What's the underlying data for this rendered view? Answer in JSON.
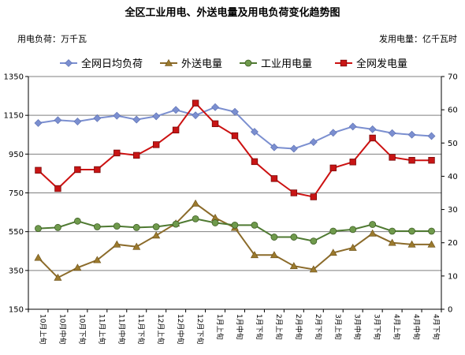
{
  "chart_data": {
    "type": "line",
    "title": "全区工业用电、外送电量及用电负荷变化趋势图",
    "left_unit": "用电负荷：万千瓦",
    "right_unit": "发用电量：亿千瓦时",
    "categories": [
      "10月上旬",
      "10月中旬",
      "10月下旬",
      "11月上旬",
      "11月中旬",
      "11月下旬",
      "12月上旬",
      "12月中旬",
      "12月下旬",
      "1月上旬",
      "1月中旬",
      "1月下旬",
      "2月上旬",
      "2月中旬",
      "2月下旬",
      "3月上旬",
      "3月中旬",
      "3月下旬",
      "4月上旬",
      "4月中旬",
      "4月下旬"
    ],
    "y_left": {
      "min": 150,
      "max": 1350,
      "ticks": [
        150,
        350,
        550,
        750,
        950,
        1150,
        1350
      ]
    },
    "y_right": {
      "min": 0,
      "max": 70,
      "ticks": [
        0,
        10,
        20,
        30,
        40,
        50,
        60,
        70
      ]
    },
    "grid": "horizontal",
    "legend_position": "top",
    "series": [
      {
        "name": "全网日均负荷",
        "axis": "left",
        "color": "#7b8fd0",
        "marker": "diamond",
        "values": [
          1110,
          1125,
          1118,
          1135,
          1148,
          1128,
          1145,
          1178,
          1150,
          1192,
          1168,
          1065,
          985,
          978,
          1012,
          1060,
          1092,
          1078,
          1058,
          1050,
          1043
        ]
      },
      {
        "name": "外送电量",
        "axis": "right",
        "color": "#8b6b2a",
        "marker": "triangle",
        "values": [
          15.5,
          9.5,
          12.5,
          14.8,
          19.5,
          18.8,
          22.2,
          25.8,
          31.8,
          27.5,
          24.5,
          16.3,
          16.3,
          13.0,
          12.0,
          17.0,
          18.5,
          22.8,
          20.0,
          19.5,
          19.5
        ]
      },
      {
        "name": "工业用电量",
        "axis": "right",
        "color": "#4f7a32",
        "marker": "circle",
        "values": [
          24.3,
          24.6,
          26.5,
          24.8,
          25.0,
          24.6,
          24.8,
          25.6,
          27.2,
          26.0,
          25.3,
          25.3,
          21.7,
          21.7,
          20.5,
          23.5,
          24.0,
          25.5,
          23.5,
          23.5,
          23.5
        ]
      },
      {
        "name": "全网发电量",
        "axis": "right",
        "color": "#cc1111",
        "marker": "square",
        "values": [
          41.8,
          36.3,
          42.0,
          42.0,
          47.0,
          46.3,
          49.5,
          53.9,
          62.0,
          55.8,
          52.2,
          44.4,
          39.3,
          35.0,
          33.8,
          42.5,
          44.3,
          51.5,
          45.7,
          44.8,
          44.8
        ]
      }
    ]
  }
}
